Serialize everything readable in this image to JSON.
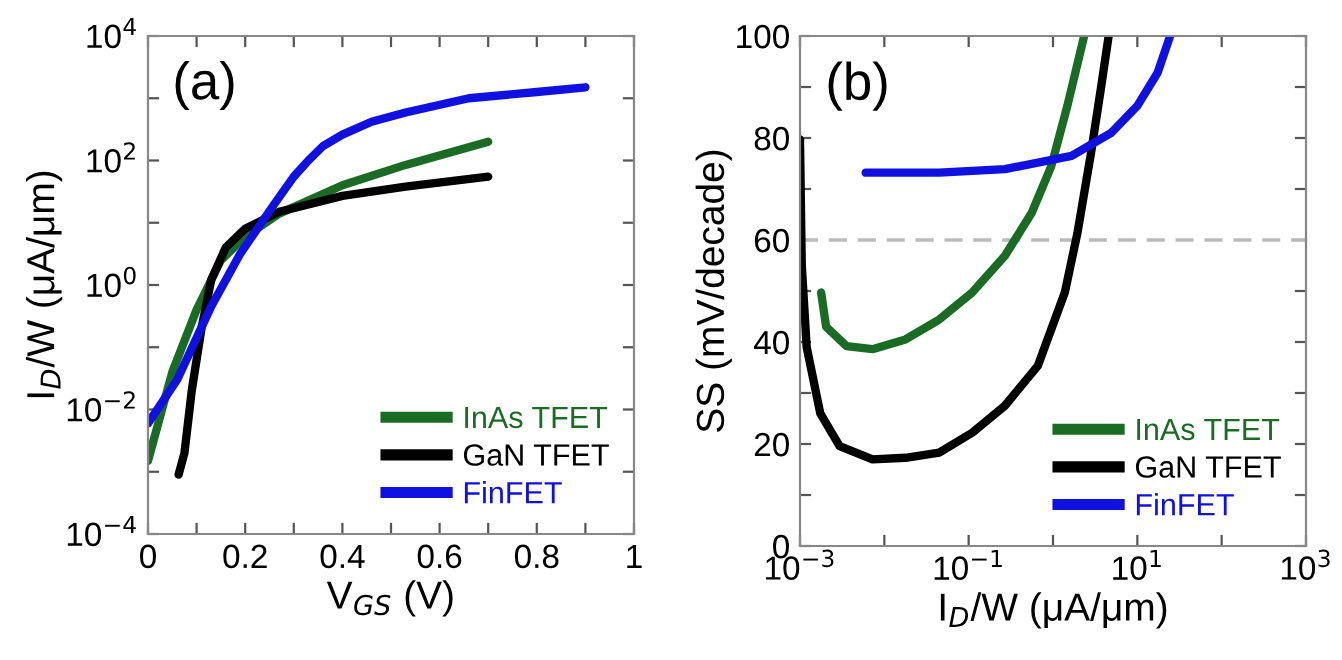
{
  "chart_data": [
    {
      "type": "line",
      "xlabel": "V$_{GS}$ (V)",
      "ylabel": "I$_{D}$/W (μA/μm)",
      "log": "y",
      "legend": "bottom right",
      "grid": false,
      "xlim": [
        0,
        1
      ],
      "xticks": [
        0,
        {
          "value": 0.1,
          "label": null
        },
        0.2,
        {
          "value": 0.3,
          "label": null
        },
        0.4,
        {
          "value": 0.5,
          "label": null
        },
        0.6,
        {
          "value": 0.7,
          "label": null
        },
        0.8,
        {
          "value": 0.9,
          "label": null
        },
        1
      ],
      "ylim": [
        0.0001,
        10000
      ],
      "yticks": [
        {
          "value": 0.0001,
          "label": "10$^{−4}$"
        },
        {
          "value": 0.001,
          "label": null
        },
        {
          "value": 0.01,
          "label": "10$^{−2}$"
        },
        {
          "value": 0.1,
          "label": null
        },
        {
          "value": 1,
          "label": "10$^{0}$"
        },
        {
          "value": 10,
          "label": null
        },
        {
          "value": 100,
          "label": "10$^{2}$"
        },
        {
          "value": 1000,
          "label": null
        },
        {
          "value": 10000,
          "label": "10$^{4}$"
        }
      ],
      "annotations": [
        "(a)"
      ],
      "series": [
        {
          "name": "InAs TFET",
          "color": "#1a6b23",
          "x": [
            0,
            0.05,
            0.1,
            0.15,
            0.2,
            0.27,
            0.4,
            0.53,
            0.7
          ],
          "values": [
            0.0015,
            0.04,
            0.4,
            2.5,
            6,
            14,
            40,
            85,
            200
          ]
        },
        {
          "name": "GaN TFET",
          "color": "#000000",
          "x": [
            0.063,
            0.075,
            0.09,
            0.11,
            0.13,
            0.16,
            0.2,
            0.27,
            0.4,
            0.53,
            0.7
          ],
          "values": [
            0.0009,
            0.002,
            0.02,
            0.2,
            1.2,
            4,
            8,
            15,
            27,
            38,
            55
          ]
        },
        {
          "name": "FinFET",
          "color": "#1010e0",
          "x": [
            0,
            0.06,
            0.13,
            0.19,
            0.26,
            0.3,
            0.33,
            0.36,
            0.4,
            0.46,
            0.53,
            0.66,
            0.8,
            0.9
          ],
          "values": [
            0.006,
            0.03,
            0.45,
            3.2,
            20,
            55,
            100,
            170,
            260,
            420,
            590,
            1000,
            1260,
            1500
          ]
        }
      ]
    },
    {
      "type": "line",
      "xlabel": "I$_{D}$/W (μA/μm)",
      "ylabel": "SS (mV/decade)",
      "log": "x",
      "legend": "bottom right",
      "grid": false,
      "xlim": [
        0.001,
        1000
      ],
      "xticks": [
        {
          "value": 0.001,
          "label": "10$^{−3}$"
        },
        {
          "value": 0.01,
          "label": null
        },
        {
          "value": 0.1,
          "label": "10$^{−1}$"
        },
        {
          "value": 1,
          "label": null
        },
        {
          "value": 10,
          "label": "10$^{1}$"
        },
        {
          "value": 100,
          "label": null
        },
        {
          "value": 1000,
          "label": "10$^{3}$"
        }
      ],
      "ylim": [
        0,
        100
      ],
      "yticks": [
        0,
        {
          "value": 10,
          "label": null
        },
        20,
        {
          "value": 30,
          "label": null
        },
        40,
        {
          "value": 50,
          "label": null
        },
        60,
        {
          "value": 70,
          "label": null
        },
        80,
        {
          "value": 90,
          "label": null
        },
        100
      ],
      "ref_lines": [
        {
          "axis": "y",
          "value": 60,
          "color": "#bbbbbb",
          "line_style": "dashed"
        }
      ],
      "annotations": [
        "(b)"
      ],
      "series": [
        {
          "name": "InAs TFET",
          "color": "#1a6b23",
          "x": [
            0.00178,
            0.00204,
            0.00355,
            0.00724,
            0.0178,
            0.0447,
            0.11,
            0.269,
            0.562,
            0.955,
            1.48,
            2.34
          ],
          "values": [
            49.7,
            43,
            39.2,
            38.6,
            40.5,
            44.4,
            49.7,
            56.9,
            65.4,
            74.5,
            86.3,
            100
          ]
        },
        {
          "name": "GaN TFET",
          "color": "#000000",
          "x": [
            0.001,
            0.00105,
            0.0012,
            0.00174,
            0.00295,
            0.00724,
            0.0178,
            0.0447,
            0.11,
            0.269,
            0.66,
            1.38,
            1.95,
            2.82,
            3.72,
            4.57
          ],
          "values": [
            79.7,
            55,
            39,
            26,
            19.6,
            17,
            17.3,
            18.3,
            22.2,
            27.5,
            35.3,
            49.7,
            61.4,
            77,
            90,
            100
          ]
        },
        {
          "name": "FinFET",
          "color": "#1010e0",
          "x": [
            0.006,
            0.0447,
            0.269,
            1.66,
            4.9,
            10,
            17.4,
            24.5
          ],
          "values": [
            73.2,
            73.2,
            73.9,
            76.5,
            81,
            86.3,
            92.8,
            100
          ]
        }
      ]
    }
  ]
}
